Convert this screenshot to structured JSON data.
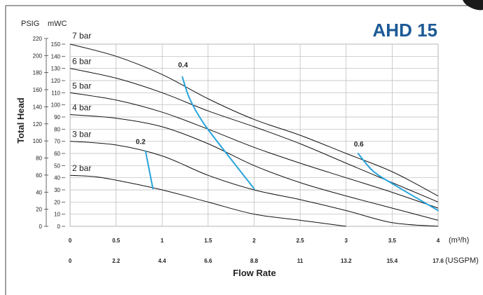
{
  "chart_data": {
    "type": "line",
    "title": "AHD 15",
    "xlabel": "Flow Rate",
    "ylabel": "Total Head",
    "x_unit_primary": "(m³/h)",
    "x_unit_secondary": "(USGPM)",
    "y_unit_left": "PSIG",
    "y_unit_right": "mWC",
    "xlim": [
      0,
      4
    ],
    "ylim": [
      0,
      150
    ],
    "x_ticks_primary": [
      {
        "value": 0,
        "label": "0"
      },
      {
        "value": 0.5,
        "label": "0.5"
      },
      {
        "value": 1,
        "label": "1"
      },
      {
        "value": 1.5,
        "label": "1.5"
      },
      {
        "value": 2,
        "label": "2"
      },
      {
        "value": 2.5,
        "label": "2.5"
      },
      {
        "value": 3,
        "label": "3"
      },
      {
        "value": 3.5,
        "label": "3.5"
      },
      {
        "value": 4,
        "label": "4"
      }
    ],
    "x_ticks_secondary": [
      {
        "value": 0,
        "label": "0"
      },
      {
        "value": 0.5,
        "label": "2.2"
      },
      {
        "value": 1,
        "label": "4.4"
      },
      {
        "value": 1.5,
        "label": "6.6"
      },
      {
        "value": 2,
        "label": "8.8"
      },
      {
        "value": 2.5,
        "label": "11"
      },
      {
        "value": 3,
        "label": "13.2"
      },
      {
        "value": 3.5,
        "label": "15.4"
      },
      {
        "value": 4,
        "label": "17.6"
      }
    ],
    "y_ticks_mwc": [
      {
        "value": 0,
        "label": "0"
      },
      {
        "value": 10,
        "label": "10"
      },
      {
        "value": 20,
        "label": "20"
      },
      {
        "value": 30,
        "label": "30"
      },
      {
        "value": 40,
        "label": "40"
      },
      {
        "value": 50,
        "label": "50"
      },
      {
        "value": 60,
        "label": "60"
      },
      {
        "value": 70,
        "label": "70"
      },
      {
        "value": 80,
        "label": "80"
      },
      {
        "value": 90,
        "label": "90"
      },
      {
        "value": 100,
        "label": "100"
      },
      {
        "value": 110,
        "label": "110"
      },
      {
        "value": 120,
        "label": "120"
      },
      {
        "value": 130,
        "label": "130"
      },
      {
        "value": 140,
        "label": "140"
      },
      {
        "value": 150,
        "label": "150"
      }
    ],
    "y_ticks_psig": [
      {
        "value": 0,
        "label": "0"
      },
      {
        "value": 14.06,
        "label": "20"
      },
      {
        "value": 28.12,
        "label": "40"
      },
      {
        "value": 42.19,
        "label": "60"
      },
      {
        "value": 56.25,
        "label": "80"
      },
      {
        "value": 70.31,
        "label": "100"
      },
      {
        "value": 84.37,
        "label": "120"
      },
      {
        "value": 98.43,
        "label": "140"
      },
      {
        "value": 112.5,
        "label": "160"
      },
      {
        "value": 126.56,
        "label": "180"
      },
      {
        "value": 140.62,
        "label": "200"
      },
      {
        "value": 154.68,
        "label": "220"
      }
    ],
    "grid": true,
    "series": [
      {
        "name": "7 bar",
        "x": [
          0,
          0.5,
          1,
          1.5,
          2,
          2.5,
          3,
          3.5,
          4
        ],
        "y": [
          150,
          140,
          125,
          105,
          88,
          75,
          60,
          45,
          25
        ]
      },
      {
        "name": "6 bar",
        "x": [
          0,
          0.5,
          1,
          1.5,
          2,
          2.5,
          3,
          3.5,
          4
        ],
        "y": [
          130,
          122,
          110,
          95,
          82,
          68,
          52,
          36,
          20
        ]
      },
      {
        "name": "5 bar",
        "x": [
          0,
          0.5,
          1,
          1.5,
          2,
          2.5,
          3,
          3.5,
          4
        ],
        "y": [
          110,
          104,
          94,
          80,
          65,
          52,
          40,
          28,
          15
        ]
      },
      {
        "name": "4 bar",
        "x": [
          0,
          0.5,
          1,
          1.5,
          2,
          2.5,
          3,
          3.5,
          4
        ],
        "y": [
          92,
          89,
          82,
          68,
          50,
          36,
          25,
          15,
          5
        ]
      },
      {
        "name": "3 bar",
        "x": [
          0,
          0.5,
          1,
          1.5,
          2,
          2.5,
          3,
          3.5,
          4
        ],
        "y": [
          70,
          67,
          58,
          42,
          30,
          22,
          13,
          3,
          0
        ]
      },
      {
        "name": "2 bar",
        "x": [
          0,
          0.25,
          0.5,
          1,
          1.5,
          2,
          2.5,
          3
        ],
        "y": [
          42,
          41,
          38,
          30,
          20,
          10,
          5,
          0
        ]
      }
    ],
    "air_consumption": [
      {
        "label": "0.2",
        "x": [
          0.82,
          0.9
        ],
        "y": [
          62,
          31
        ]
      },
      {
        "label": "0.4",
        "x": [
          1.22,
          1.3,
          1.45,
          1.7,
          2.0
        ],
        "y": [
          123,
          105,
          85,
          60,
          31
        ]
      },
      {
        "label": "0.6",
        "x": [
          3.13,
          3.3,
          3.55,
          4.0
        ],
        "y": [
          60,
          45,
          33,
          13
        ]
      }
    ]
  }
}
